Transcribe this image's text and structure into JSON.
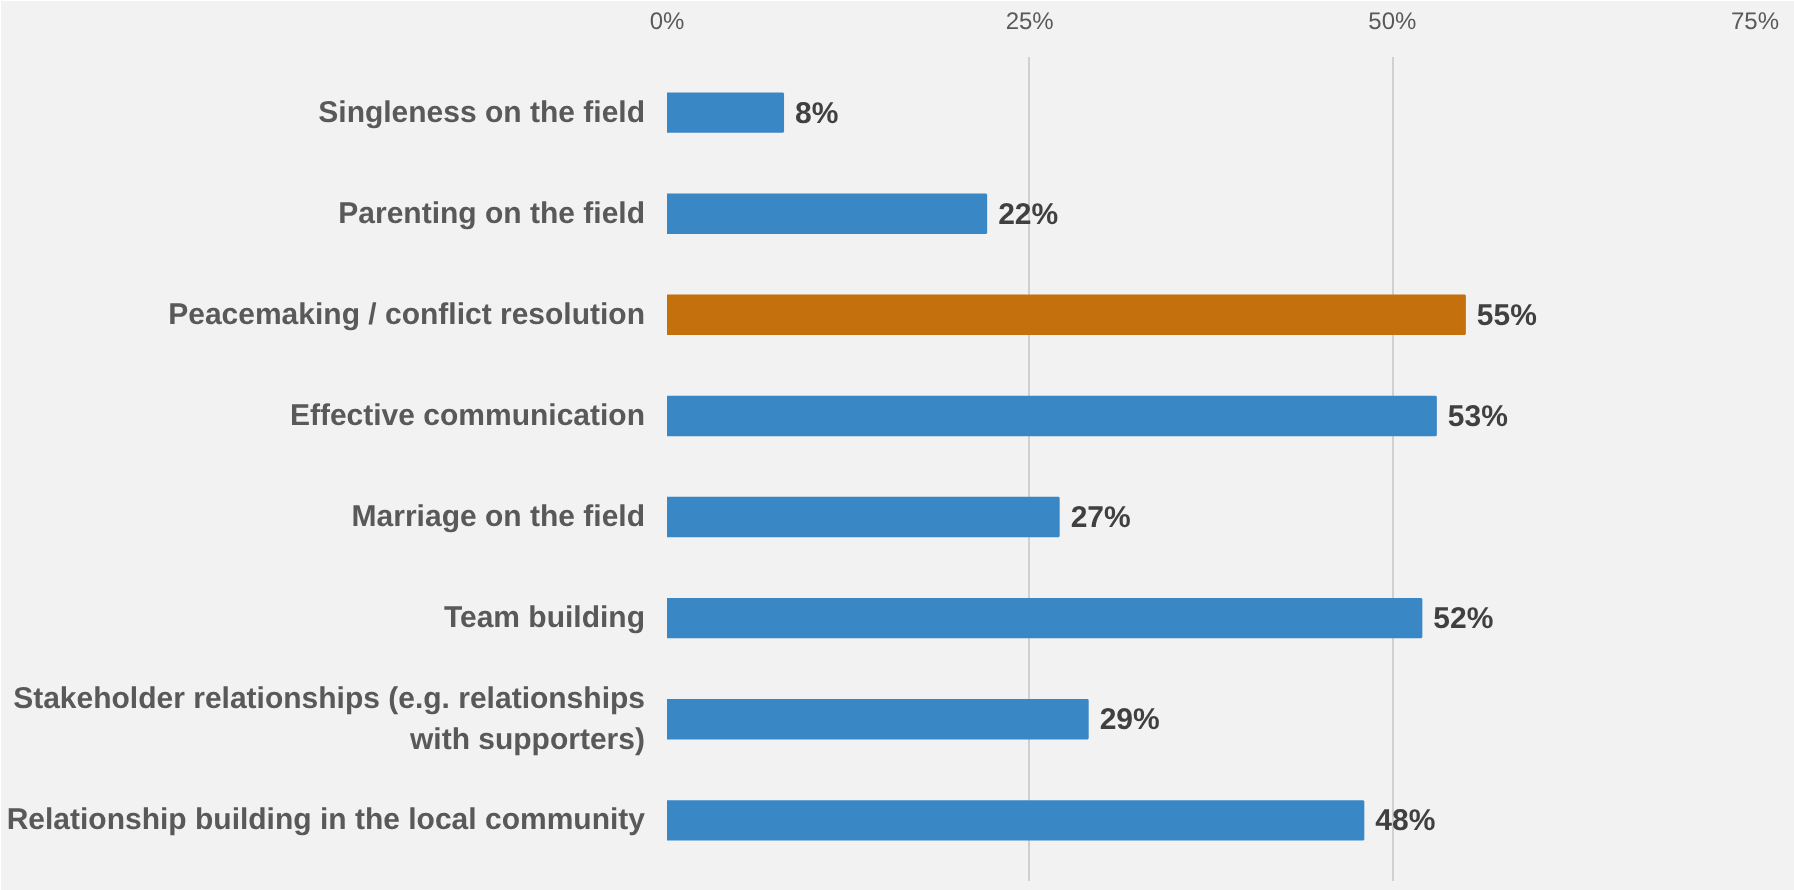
{
  "chart_data": {
    "type": "bar",
    "orientation": "horizontal",
    "categories": [
      "Singleness on the field",
      "Parenting on the field",
      "Peacemaking / conflict resolution",
      "Effective communication",
      "Marriage on the field",
      "Team building",
      "Stakeholder relationships (e.g. relationships with supporters)",
      "Relationship building in the local community"
    ],
    "values": [
      8,
      22,
      55,
      53,
      27,
      52,
      29,
      48
    ],
    "colors": [
      "#3a87c6",
      "#3a87c6",
      "#c4700c",
      "#3a87c6",
      "#3a87c6",
      "#3a87c6",
      "#3a87c6",
      "#3a87c6"
    ],
    "value_labels": [
      "8%",
      "22%",
      "55%",
      "53%",
      "27%",
      "52%",
      "29%",
      "48%"
    ],
    "xlim": [
      0,
      75
    ],
    "xticks": [
      {
        "value": 0,
        "label": "0%"
      },
      {
        "value": 25,
        "label": "25%"
      },
      {
        "value": 50,
        "label": "50%"
      },
      {
        "value": 75,
        "label": "75%"
      }
    ],
    "grid": "x"
  }
}
